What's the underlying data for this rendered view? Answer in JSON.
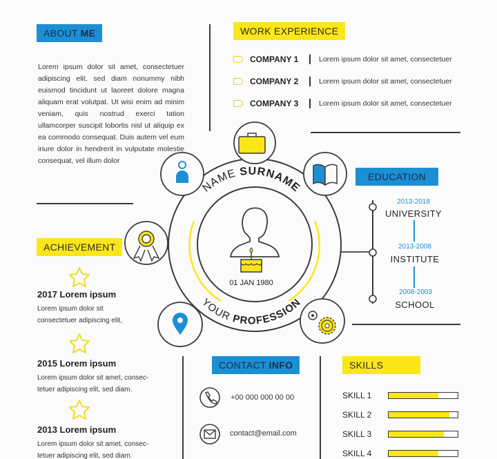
{
  "about": {
    "title_a": "ABOUT ",
    "title_b": "ME",
    "body": "Lorem ipsum dolor sit amet, consectetuer adipiscing elit, sed diam nonummy nibh euismod tincidunt ut laoreet dolore magna aliquam erat volutpat. Ut wisi enim ad minim veniam, quis nostrud exerci tation ullamcorper suscipit lobortis nisl ut aliquip ex ea commodo consequat. Duis autem vel eum iriure dolor in hendrerit in vulputate molestie consequat, vel illum dolor"
  },
  "work": {
    "title_a": "WORK ",
    "title_b": "EXPERIENCE",
    "items": [
      {
        "company": "COMPANY 1",
        "desc": "Lorem ipsum dolor sit amet, consectetuer"
      },
      {
        "company": "COMPANY 2",
        "desc": "Lorem ipsum dolor sit amet, consectetuer"
      },
      {
        "company": "COMPANY 3",
        "desc": "Lorem ipsum dolor sit amet, consectetuer"
      }
    ]
  },
  "profile": {
    "name_a": "NAME ",
    "name_b": "SURNAME",
    "prof_a": "YOUR ",
    "prof_b": "PROFESSION",
    "birthdate": "01 JAN 1980"
  },
  "education": {
    "title": "EDUCATION",
    "items": [
      {
        "years": "2013-2018",
        "name": "UNIVERSITY"
      },
      {
        "years": "2013-2008",
        "name": "INSTITUTE"
      },
      {
        "years": "2008-2003",
        "name": "SCHOOL"
      }
    ]
  },
  "achievement": {
    "title": "ACHIEVEMENT",
    "items": [
      {
        "title": "2017  Lorem ipsum",
        "desc_1": "Lorem ipsum dolor sit",
        "desc_2": "consectetuer adipiscing elit,"
      },
      {
        "title": "2015  Lorem ipsum",
        "desc_1": "Lorem ipsum dolor sit amet, consec-",
        "desc_2": "tetuer adipiscing elit, sed diam."
      },
      {
        "title": "2013  Lorem ipsum",
        "desc_1": "Lorem ipsum dolor sit amet, consec-",
        "desc_2": "tetuer adipiscing elit, sed diam."
      }
    ]
  },
  "contact": {
    "title_a": "CONTACT ",
    "title_b": "INFO",
    "phone": "+00 000 000 00 00",
    "email": "contact@email.com"
  },
  "skills": {
    "title": "SKILLS",
    "items": [
      {
        "label": "SKILL 1",
        "level": 0.72
      },
      {
        "label": "SKILL 2",
        "level": 0.88
      },
      {
        "label": "SKILL 3",
        "level": 0.8
      },
      {
        "label": "SKILL 4",
        "level": 0.72
      }
    ]
  },
  "colors": {
    "blue": "#1c8fd4",
    "yellow": "#fbe619",
    "line": "#3a3a3a"
  },
  "icons": [
    "briefcase-icon",
    "person-icon",
    "book-icon",
    "award-ribbon-icon",
    "location-pin-icon",
    "gear-icon",
    "avatar-silhouette-icon",
    "birthday-cake-icon",
    "star-icon",
    "phone-icon",
    "email-icon",
    "company-flag-icon"
  ]
}
